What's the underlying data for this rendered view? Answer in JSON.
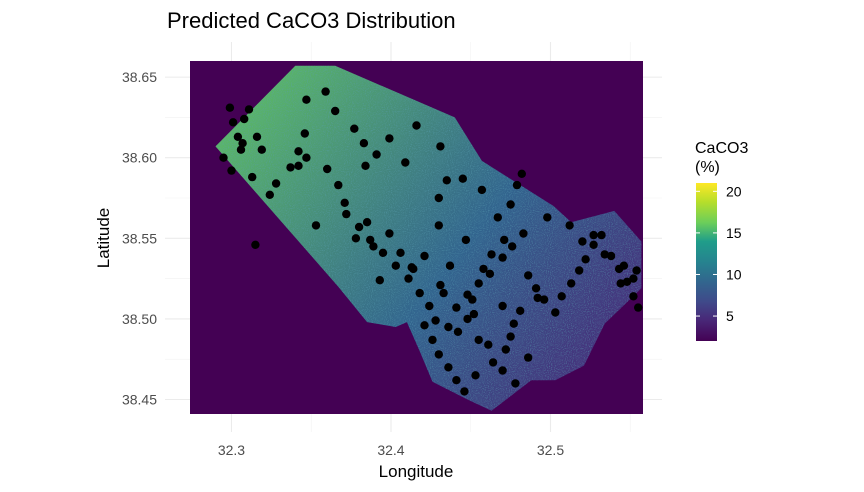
{
  "chart_data": {
    "type": "heatmap",
    "title": "Predicted CaCO3 Distribution",
    "xlabel": "Longitude",
    "ylabel": "Latitude",
    "xlim": [
      32.274,
      32.558
    ],
    "ylim": [
      38.441,
      38.66
    ],
    "x_ticks": [
      32.3,
      32.4,
      32.5
    ],
    "x_tick_labels": [
      "32.3",
      "32.4",
      "32.5"
    ],
    "y_ticks": [
      38.45,
      38.5,
      38.55,
      38.6,
      38.65
    ],
    "y_tick_labels": [
      "38.45",
      "38.50",
      "38.55",
      "38.60",
      "38.65"
    ],
    "grid": true,
    "background_fill": "#440154",
    "legend": {
      "title_line1": "CaCO3",
      "title_line2": "(%)",
      "placement": "right",
      "range": [
        2,
        21
      ],
      "ticks": [
        5,
        10,
        15,
        20
      ],
      "tick_labels": [
        "5",
        "10",
        "15",
        "20"
      ],
      "colormap": "viridis"
    },
    "study_area_polygon": [
      [
        32.29,
        38.607
      ],
      [
        32.34,
        38.657
      ],
      [
        32.365,
        38.657
      ],
      [
        32.44,
        38.625
      ],
      [
        32.457,
        38.598
      ],
      [
        32.502,
        38.57
      ],
      [
        32.513,
        38.56
      ],
      [
        32.54,
        38.567
      ],
      [
        32.557,
        38.548
      ],
      [
        32.557,
        38.519
      ],
      [
        32.534,
        38.497
      ],
      [
        32.521,
        38.471
      ],
      [
        32.503,
        38.462
      ],
      [
        32.488,
        38.462
      ],
      [
        32.463,
        38.443
      ],
      [
        32.448,
        38.45
      ],
      [
        32.426,
        38.461
      ],
      [
        32.418,
        38.48
      ],
      [
        32.41,
        38.498
      ],
      [
        32.403,
        38.495
      ],
      [
        32.385,
        38.498
      ],
      [
        32.367,
        38.52
      ]
    ],
    "caco3_gradient_stops": [
      {
        "x": 32.28,
        "y": 38.657,
        "value": 16
      },
      {
        "x": 32.42,
        "y": 38.51,
        "value": 9
      },
      {
        "x": 32.53,
        "y": 38.47,
        "value": 5
      }
    ],
    "sample_points": {
      "color": "#000000",
      "x": [
        32.299,
        32.308,
        32.301,
        32.304,
        32.306,
        32.295,
        32.3,
        32.307,
        32.316,
        32.319,
        32.313,
        32.328,
        32.342,
        32.347,
        32.311,
        32.324,
        32.337,
        32.346,
        32.359,
        32.365,
        32.377,
        32.383,
        32.384,
        32.391,
        32.399,
        32.409,
        32.416,
        32.431,
        32.435,
        32.43,
        32.445,
        32.457,
        32.467,
        32.475,
        32.479,
        32.482,
        32.378,
        32.385,
        32.389,
        32.399,
        32.406,
        32.414,
        32.421,
        32.43,
        32.431,
        32.437,
        32.447,
        32.451,
        32.462,
        32.47,
        32.476,
        32.483,
        32.498,
        32.512,
        32.52,
        32.527,
        32.534,
        32.546,
        32.544,
        32.552,
        32.554,
        32.36,
        32.367,
        32.371,
        32.372,
        32.38,
        32.387,
        32.395,
        32.403,
        32.411,
        32.418,
        32.424,
        32.428,
        32.441,
        32.448,
        32.455,
        32.458,
        32.463,
        32.471,
        32.486,
        32.491,
        32.496,
        32.503,
        32.507,
        32.513,
        32.518,
        32.522,
        32.527,
        32.532,
        32.538,
        32.543,
        32.548,
        32.552,
        32.555,
        32.421,
        32.426,
        32.43,
        32.436,
        32.441,
        32.446,
        32.453,
        32.464,
        32.472,
        32.475,
        32.477,
        32.481,
        32.492,
        32.455,
        32.436,
        32.452,
        32.478,
        32.47,
        32.486,
        32.461,
        32.442,
        32.448,
        32.47,
        32.433,
        32.393,
        32.413,
        32.342,
        32.347,
        32.353,
        32.315
      ],
      "y": [
        38.631,
        38.624,
        38.622,
        38.613,
        38.605,
        38.6,
        38.592,
        38.609,
        38.613,
        38.605,
        38.588,
        38.584,
        38.604,
        38.636,
        38.63,
        38.577,
        38.594,
        38.615,
        38.641,
        38.629,
        38.618,
        38.609,
        38.595,
        38.602,
        38.612,
        38.597,
        38.62,
        38.607,
        38.586,
        38.575,
        38.587,
        38.58,
        38.563,
        38.571,
        38.583,
        38.59,
        38.55,
        38.56,
        38.545,
        38.553,
        38.541,
        38.531,
        38.539,
        38.558,
        38.521,
        38.533,
        38.549,
        38.512,
        38.528,
        38.538,
        38.545,
        38.553,
        38.563,
        38.558,
        38.548,
        38.552,
        38.54,
        38.533,
        38.522,
        38.525,
        38.53,
        38.593,
        38.583,
        38.572,
        38.565,
        38.557,
        38.549,
        38.541,
        38.533,
        38.525,
        38.516,
        38.508,
        38.499,
        38.507,
        38.515,
        38.522,
        38.531,
        38.54,
        38.549,
        38.527,
        38.519,
        38.512,
        38.504,
        38.514,
        38.522,
        38.53,
        38.537,
        38.546,
        38.552,
        38.539,
        38.531,
        38.523,
        38.514,
        38.507,
        38.496,
        38.487,
        38.478,
        38.47,
        38.462,
        38.455,
        38.465,
        38.473,
        38.481,
        38.489,
        38.497,
        38.505,
        38.513,
        38.487,
        38.495,
        38.503,
        38.46,
        38.468,
        38.476,
        38.484,
        38.492,
        38.5,
        38.508,
        38.516,
        38.524,
        38.532,
        38.595,
        38.6,
        38.558,
        38.546
      ]
    }
  }
}
